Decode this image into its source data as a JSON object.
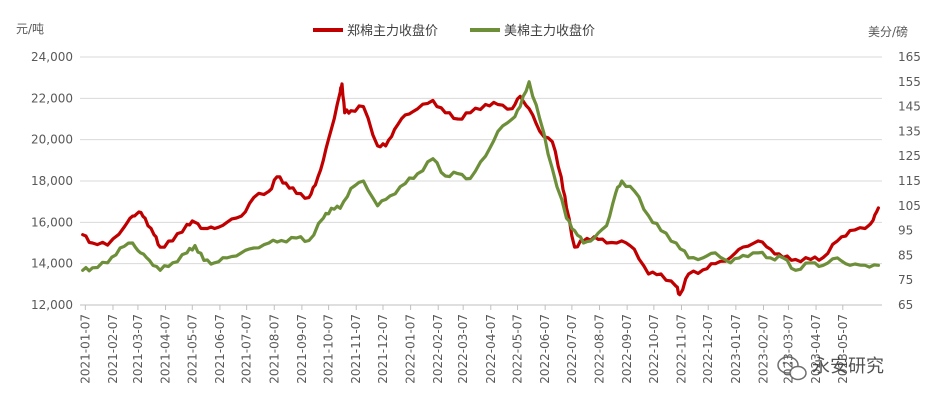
{
  "chart_data": {
    "type": "line",
    "y_left_unit": "元/吨",
    "y_right_unit": "美分/磅",
    "ylim_left": [
      12000,
      24000
    ],
    "ylim_right": [
      65,
      165
    ],
    "yticks_left": [
      "12,000",
      "14,000",
      "16,000",
      "18,000",
      "20,000",
      "22,000",
      "24,000"
    ],
    "yticks_right": [
      "65",
      "75",
      "85",
      "95",
      "105",
      "115",
      "125",
      "135",
      "145",
      "155",
      "165"
    ],
    "x_range": [
      "2021-01-01",
      "2023-06-20"
    ],
    "xticks": [
      "2021-01-07",
      "2021-02-07",
      "2021-03-07",
      "2021-04-07",
      "2021-05-07",
      "2021-06-07",
      "2021-07-07",
      "2021-08-07",
      "2021-09-07",
      "2021-10-07",
      "2021-11-07",
      "2021-12-07",
      "2022-01-07",
      "2022-02-07",
      "2022-03-07",
      "2022-04-07",
      "2022-05-07",
      "2022-06-07",
      "2022-07-07",
      "2022-08-07",
      "2022-09-07",
      "2022-10-07",
      "2022-11-07",
      "2022-12-07",
      "2023-01-07",
      "2023-02-07",
      "2023-03-07",
      "2023-04-07",
      "2023-05-07"
    ],
    "gridlines": true,
    "legend_position": "top-center",
    "series": [
      {
        "name": "郑棉主力收盘价",
        "axis": "left",
        "color": "#c00000",
        "x": [
          "2021-01-04",
          "2021-01-15",
          "2021-02-01",
          "2021-02-20",
          "2021-03-01",
          "2021-03-08",
          "2021-03-15",
          "2021-03-25",
          "2021-04-01",
          "2021-04-15",
          "2021-05-01",
          "2021-05-10",
          "2021-05-20",
          "2021-06-01",
          "2021-06-15",
          "2021-07-01",
          "2021-07-15",
          "2021-08-01",
          "2021-08-10",
          "2021-08-20",
          "2021-09-01",
          "2021-09-15",
          "2021-09-22",
          "2021-10-01",
          "2021-10-10",
          "2021-10-20",
          "2021-10-22",
          "2021-10-25",
          "2021-11-01",
          "2021-11-15",
          "2021-12-01",
          "2021-12-10",
          "2021-12-20",
          "2022-01-01",
          "2022-01-15",
          "2022-02-01",
          "2022-02-15",
          "2022-03-01",
          "2022-03-15",
          "2022-04-01",
          "2022-04-15",
          "2022-05-01",
          "2022-05-10",
          "2022-05-20",
          "2022-06-01",
          "2022-06-15",
          "2022-06-25",
          "2022-07-01",
          "2022-07-10",
          "2022-07-20",
          "2022-08-01",
          "2022-08-15",
          "2022-09-01",
          "2022-09-15",
          "2022-10-01",
          "2022-10-15",
          "2022-11-01",
          "2022-11-05",
          "2022-11-15",
          "2022-12-01",
          "2022-12-15",
          "2023-01-01",
          "2023-01-15",
          "2023-02-01",
          "2023-02-15",
          "2023-03-01",
          "2023-03-15",
          "2023-04-01",
          "2023-04-15",
          "2023-05-01",
          "2023-05-15",
          "2023-06-01",
          "2023-06-10",
          "2023-06-16"
        ],
        "values": [
          15400,
          15000,
          14900,
          15800,
          16300,
          16500,
          16200,
          15400,
          14800,
          15100,
          15900,
          16000,
          15700,
          15700,
          16000,
          16300,
          17200,
          17500,
          18200,
          17900,
          17400,
          17200,
          17800,
          19000,
          20500,
          22300,
          22700,
          21300,
          21400,
          21600,
          19700,
          19700,
          20500,
          21200,
          21500,
          21900,
          21300,
          21000,
          21300,
          21700,
          21700,
          21500,
          22100,
          21500,
          20400,
          19900,
          18200,
          16700,
          14800,
          15100,
          15300,
          15000,
          15100,
          14700,
          13500,
          13500,
          12900,
          12500,
          13500,
          13700,
          14000,
          14300,
          14800,
          15100,
          14700,
          14300,
          14200,
          14200,
          14300,
          15100,
          15600,
          15700,
          16100,
          16700
        ]
      },
      {
        "name": "美棉主力收盘价",
        "axis": "right",
        "color": "#6e8f3a",
        "x": [
          "2021-01-04",
          "2021-01-15",
          "2021-02-01",
          "2021-02-15",
          "2021-03-01",
          "2021-03-10",
          "2021-03-20",
          "2021-04-01",
          "2021-04-15",
          "2021-05-01",
          "2021-05-10",
          "2021-05-20",
          "2021-06-01",
          "2021-06-15",
          "2021-07-01",
          "2021-07-15",
          "2021-08-01",
          "2021-08-15",
          "2021-09-01",
          "2021-09-15",
          "2021-10-01",
          "2021-10-10",
          "2021-10-20",
          "2021-11-01",
          "2021-11-15",
          "2021-12-01",
          "2021-12-15",
          "2022-01-01",
          "2022-01-15",
          "2022-02-01",
          "2022-02-15",
          "2022-03-01",
          "2022-03-15",
          "2022-04-01",
          "2022-04-15",
          "2022-05-01",
          "2022-05-10",
          "2022-05-20",
          "2022-06-01",
          "2022-06-15",
          "2022-07-01",
          "2022-07-10",
          "2022-07-20",
          "2022-08-01",
          "2022-08-15",
          "2022-08-25",
          "2022-09-01",
          "2022-09-15",
          "2022-10-01",
          "2022-10-15",
          "2022-11-01",
          "2022-11-15",
          "2022-12-01",
          "2022-12-15",
          "2023-01-01",
          "2023-01-15",
          "2023-02-01",
          "2023-02-15",
          "2023-03-01",
          "2023-03-15",
          "2023-04-01",
          "2023-04-15",
          "2023-05-01",
          "2023-05-15",
          "2023-06-01",
          "2023-06-16"
        ],
        "values": [
          79,
          80,
          82,
          88,
          90,
          86,
          83,
          79,
          82,
          86,
          89,
          83,
          82,
          84,
          86,
          88,
          90,
          91,
          92,
          91,
          100,
          104,
          104,
          112,
          115,
          105,
          109,
          114,
          118,
          124,
          117,
          118,
          116,
          125,
          135,
          140,
          145,
          155,
          140,
          120,
          100,
          95,
          90,
          92,
          97,
          110,
          115,
          111,
          101,
          95,
          90,
          84,
          84,
          86,
          82,
          85,
          86,
          84,
          84,
          79,
          82,
          81,
          84,
          81,
          81,
          81
        ]
      }
    ]
  },
  "watermark": "永安研究",
  "watermark_icon": "wechat-icon"
}
